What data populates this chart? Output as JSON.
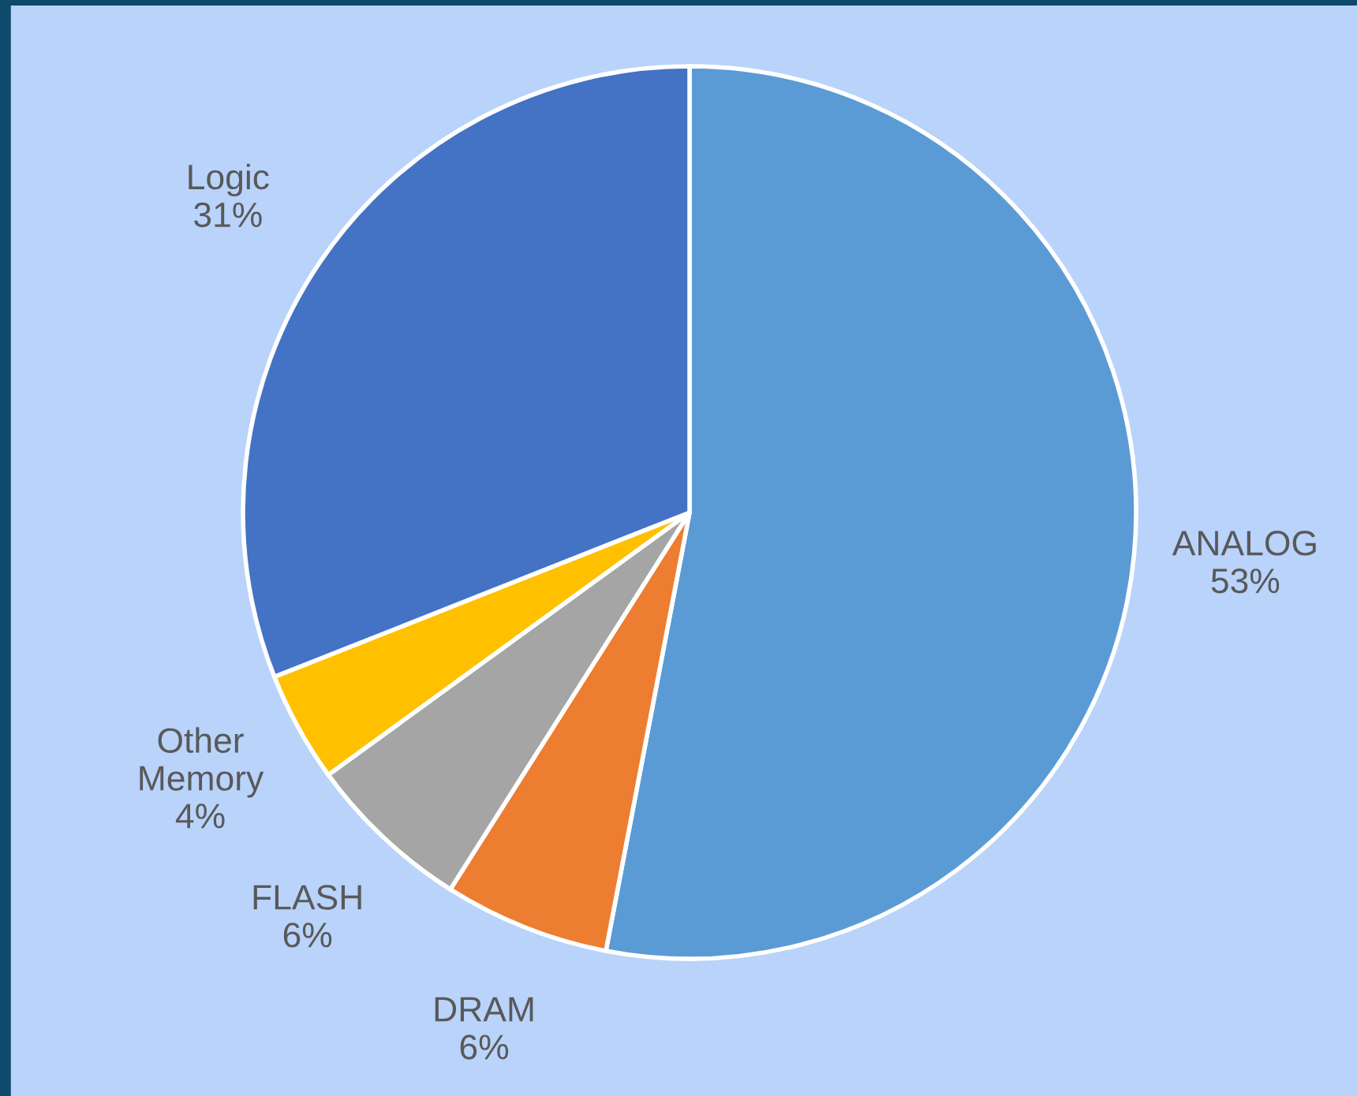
{
  "chart_data": {
    "type": "pie",
    "categories": [
      "ANALOG",
      "DRAM",
      "FLASH",
      "Other Memory",
      "Logic"
    ],
    "values": [
      53,
      6,
      6,
      4,
      31
    ],
    "value_labels": [
      "53%",
      "6%",
      "6%",
      "4%",
      "31%"
    ],
    "colors": [
      "#5b9bd5",
      "#ed7d31",
      "#a5a5a5",
      "#ffc000",
      "#4472c4"
    ],
    "legend": false
  }
}
